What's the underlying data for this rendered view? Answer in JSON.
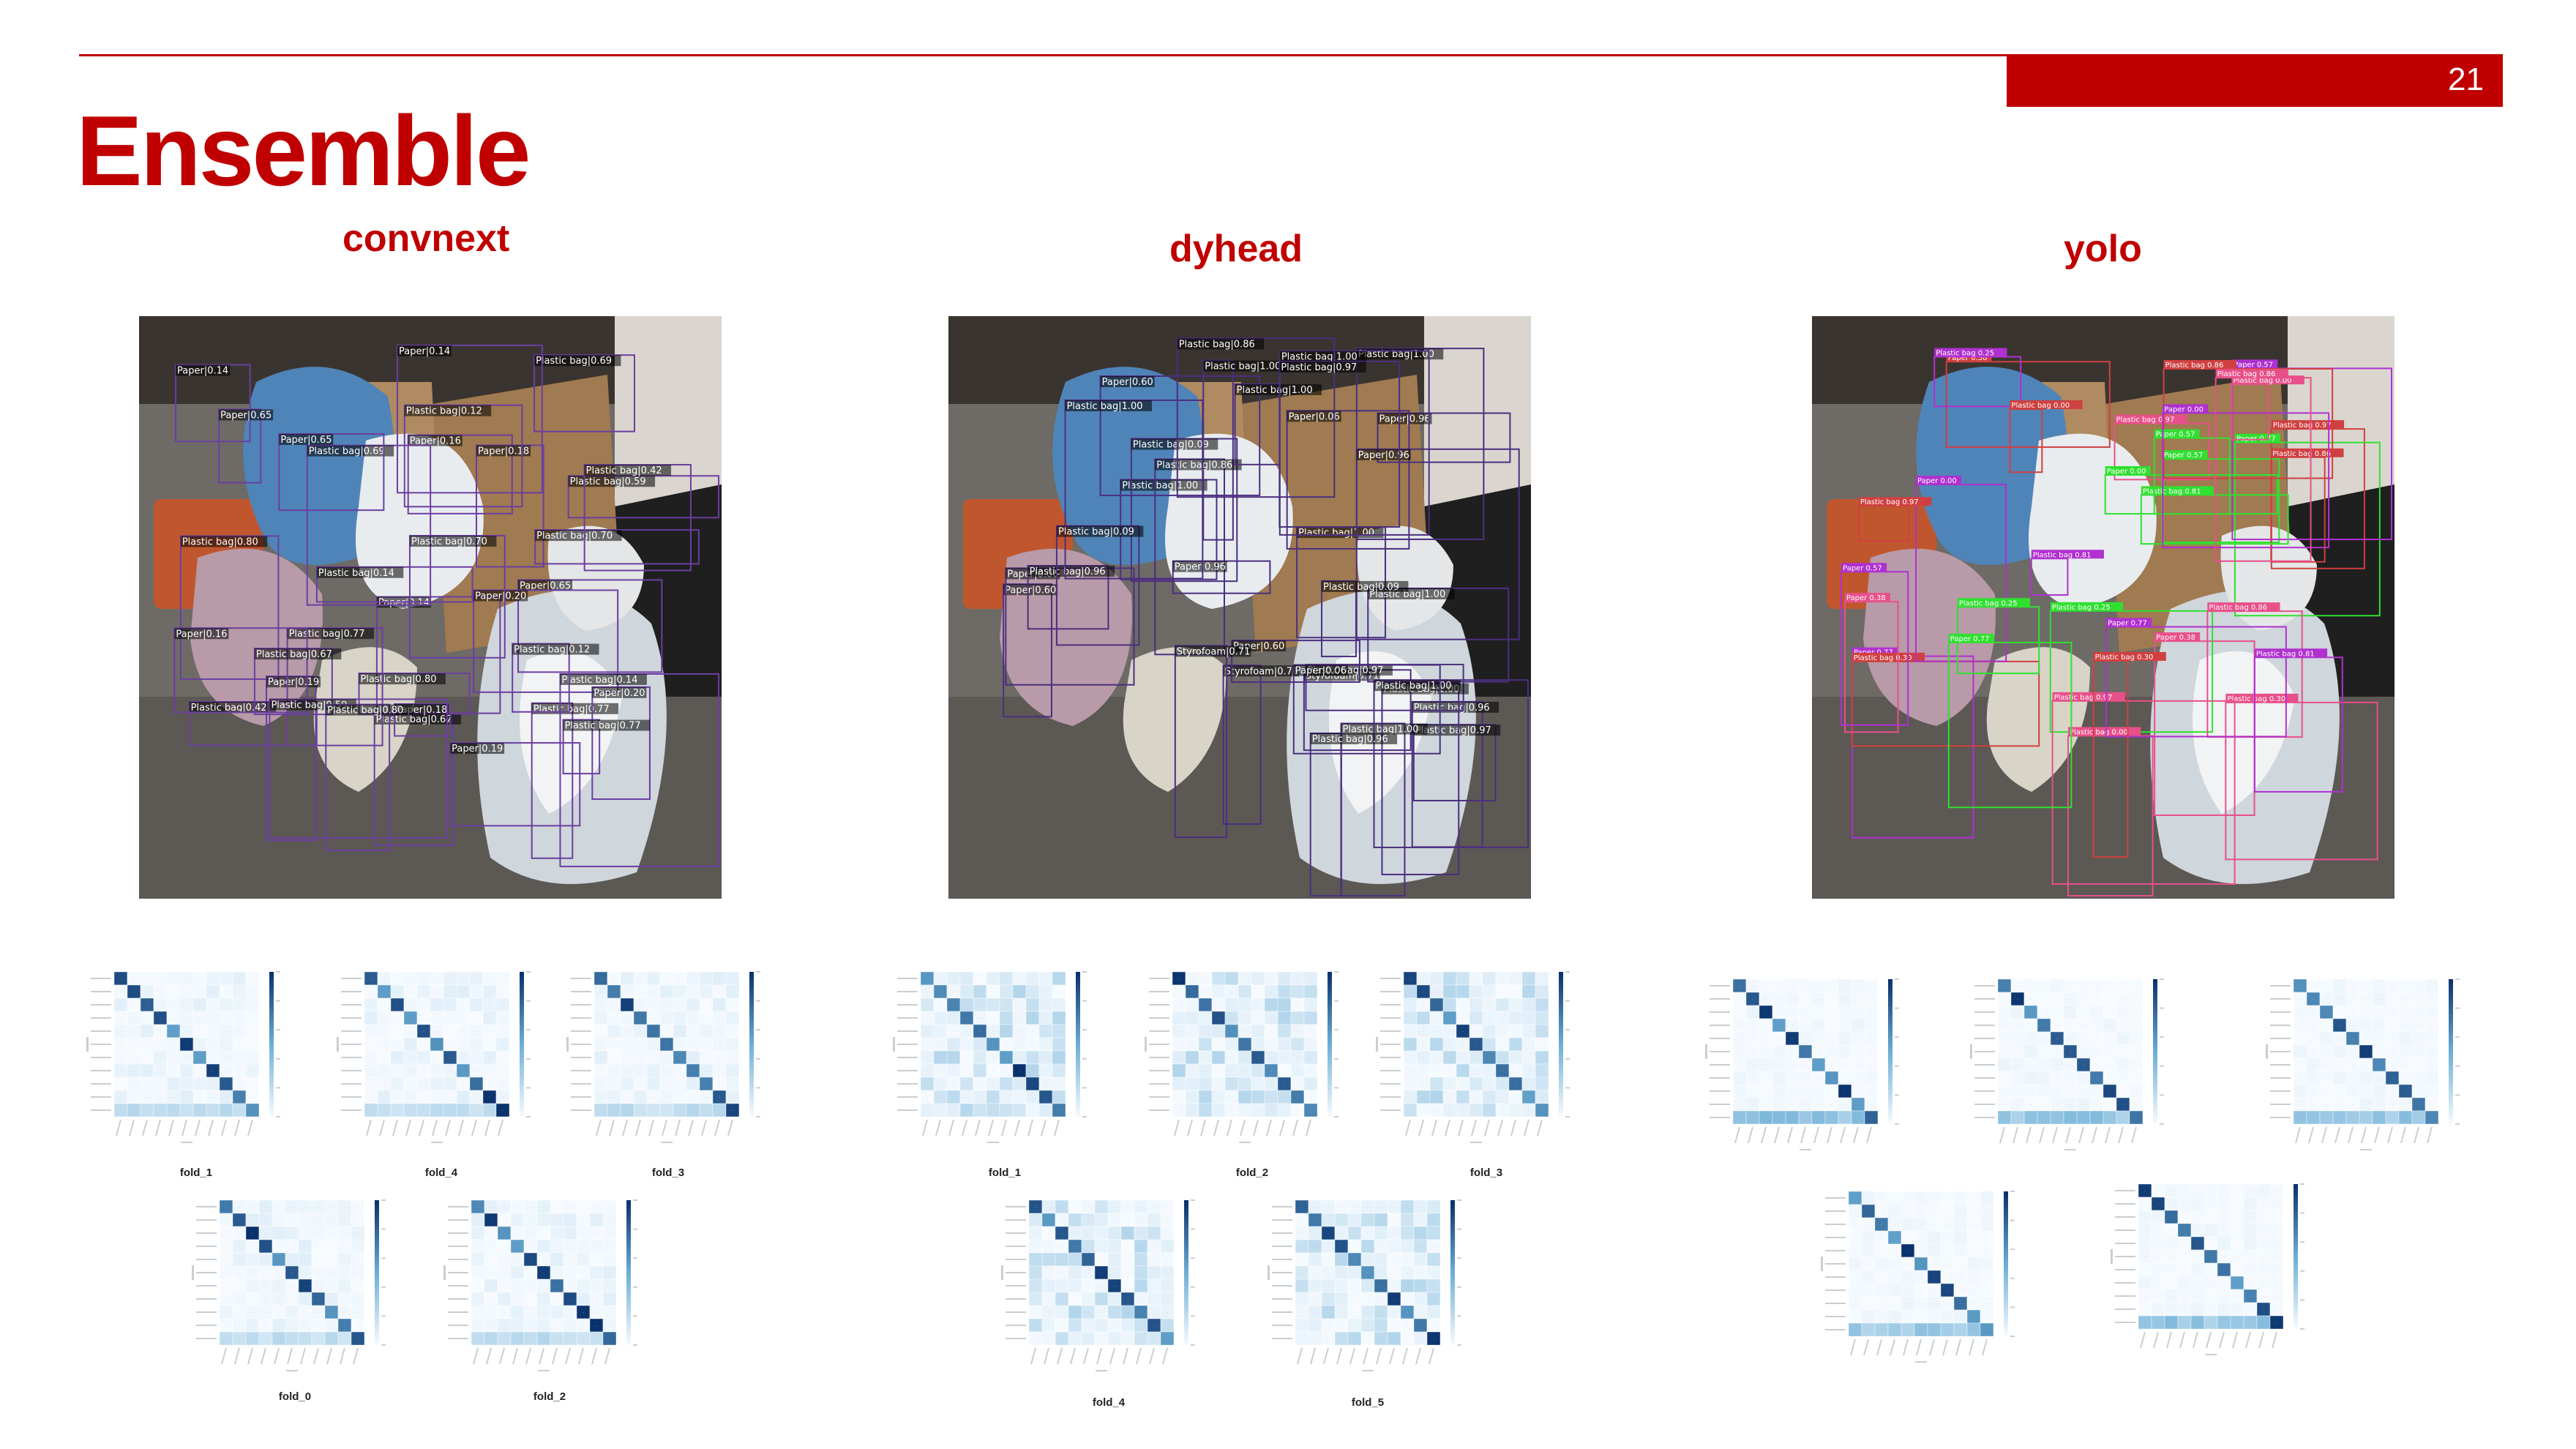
{
  "header": {
    "page_number": "21",
    "title": "Ensemble",
    "accent_color": "#c00000"
  },
  "models": [
    {
      "label": "convnext",
      "fold_labels": [
        "fold_1",
        "fold_4",
        "fold_3",
        "fold_0",
        "fold_2"
      ]
    },
    {
      "label": "dyhead",
      "fold_labels": [
        "fold_1",
        "fold_2",
        "fold_3",
        "fold_4",
        "fold_5"
      ]
    },
    {
      "label": "yolo"
    }
  ],
  "detections": {
    "convnext": [
      "Plastic bag|0.80",
      "Paper|0.65",
      "Paper|0.14",
      "Plastic bag|0.77",
      "Paper|0.20",
      "Paper|0.16",
      "Paper|0.18",
      "Paper|0.19",
      "Plastic bag|0.67",
      "Plastic bag|0.69",
      "Plastic bag|0.42",
      "Plastic bag|0.59",
      "Plastic bag|0.14",
      "Plastic bag|0.70",
      "Plastic bag|0.12"
    ],
    "dyhead": [
      "Plastic bag|1.00",
      "Paper|0.96",
      "Plastic bag|1.00",
      "Paper|0.60",
      "Paper|0.06",
      "Plastic bag|0.96",
      "Plastic bag|1.00",
      "Plastic bag|0.09",
      "Plastic bag|0.97",
      "Styrofoam|0.71",
      "Plastic bag|1.00",
      "Plastic bag|0.86"
    ],
    "yolo": [
      "Plastic bag 0.97",
      "Paper 0.77",
      "Plastic bag 0.86",
      "Paper 0.57",
      "Paper 0.38",
      "Plastic bag 0.81",
      "Plastic bag 0.30",
      "Plastic bag 0.25",
      "Plastic bag 0.00",
      "Paper 0.00"
    ]
  },
  "colors": {
    "floor": "#6e6a66",
    "wall": "#dad6cf",
    "blue_bag": "#4f84b8",
    "white_bag": "#e8ecef",
    "clear_bag": "#cfd6dc",
    "box": "#a07a50",
    "orange_bin": "#c0562e",
    "convnext_box": "#6b3fa0",
    "dyhead_box": "#4b2f80",
    "yolo_box_pink": "#e8508a",
    "yolo_box_purple": "#b030d0",
    "yolo_box_green": "#30e030",
    "heat_low": "#f7fbff",
    "heat_high": "#08306b"
  }
}
